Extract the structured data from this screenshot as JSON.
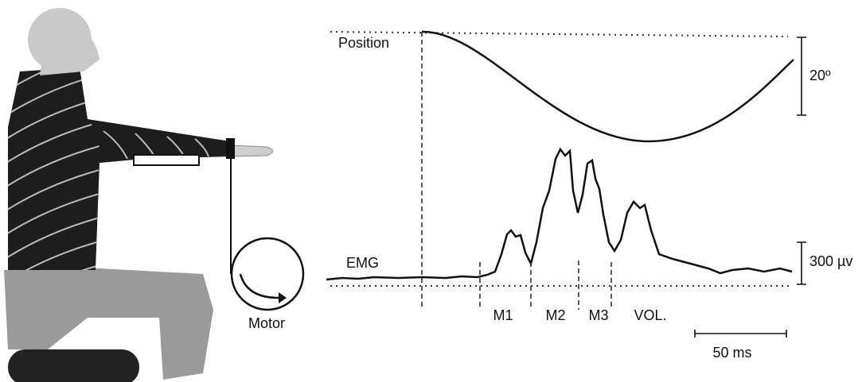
{
  "figure": {
    "motor": "Motor",
    "traces": {
      "position": "Position",
      "emg": "EMG"
    },
    "scales": {
      "angle": "20º",
      "voltage": "300 µv",
      "time": "50 ms"
    },
    "phases": [
      "M1",
      "M2",
      "M3",
      "VOL."
    ]
  }
}
